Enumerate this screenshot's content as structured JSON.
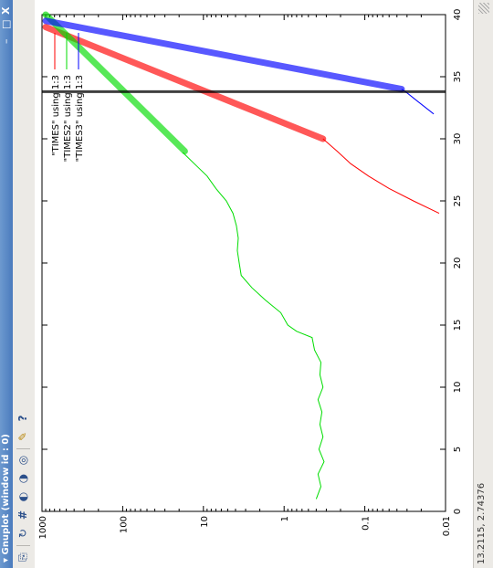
{
  "window": {
    "title": "Gnuplot (window id : 0)",
    "menu_glyph": "▾",
    "minimize_glyph": "–",
    "maximize_glyph": "□",
    "close_glyph": "X"
  },
  "toolbar": {
    "icons": [
      {
        "name": "copy-to-clipboard-icon",
        "glyph": "⎘"
      },
      {
        "name": "replot-icon",
        "glyph": "↻"
      },
      {
        "name": "grid-icon",
        "glyph": "#"
      },
      {
        "name": "previous-zoom-icon",
        "glyph": "◐"
      },
      {
        "name": "next-zoom-icon",
        "glyph": "◑"
      },
      {
        "name": "autoscale-icon",
        "glyph": "◎"
      },
      {
        "name": "configure-icon",
        "glyph": "✎"
      },
      {
        "name": "help-icon",
        "glyph": "?"
      }
    ]
  },
  "status": {
    "coords": "13.2115, 2.74376"
  },
  "chart_data": {
    "type": "line",
    "x_ticks": [
      "0",
      "5",
      "10",
      "15",
      "20",
      "25",
      "30",
      "35",
      "40"
    ],
    "y_ticks": [
      "0.01",
      "0.1",
      "1",
      "10",
      "100",
      "1000"
    ],
    "xlim": [
      0,
      40
    ],
    "ylim": [
      0.01,
      1000
    ],
    "yscale": "log",
    "grid": false,
    "legend_position": "top-right",
    "series": [
      {
        "name": "\"TIMES\" using 1:3",
        "color": "#ff0000",
        "points": [
          [
            24,
            0.012
          ],
          [
            25,
            0.025
          ],
          [
            26,
            0.05
          ],
          [
            27,
            0.09
          ],
          [
            28,
            0.15
          ],
          [
            29,
            0.22
          ],
          [
            30,
            0.33
          ]
        ]
      },
      {
        "name": "\"TIMES2\" using 1:3",
        "color": "#00dd00",
        "points": [
          [
            1,
            0.4
          ],
          [
            2,
            0.35
          ],
          [
            3,
            0.38
          ],
          [
            4,
            0.32
          ],
          [
            5,
            0.37
          ],
          [
            6,
            0.33
          ],
          [
            7,
            0.36
          ],
          [
            8,
            0.34
          ],
          [
            9,
            0.38
          ],
          [
            10,
            0.33
          ],
          [
            11,
            0.36
          ],
          [
            12,
            0.35
          ],
          [
            13,
            0.42
          ],
          [
            14,
            0.45
          ],
          [
            14.5,
            0.7
          ],
          [
            15,
            0.9
          ],
          [
            16,
            1.1
          ],
          [
            17,
            1.7
          ],
          [
            18,
            2.5
          ],
          [
            19,
            3.4
          ],
          [
            20,
            3.6
          ],
          [
            21,
            3.8
          ],
          [
            22,
            3.7
          ],
          [
            23,
            3.9
          ],
          [
            24,
            4.3
          ],
          [
            25,
            5.2
          ],
          [
            26,
            7.0
          ],
          [
            27,
            9.0
          ],
          [
            28,
            13
          ],
          [
            28.9,
            18
          ]
        ]
      },
      {
        "name": "\"TIMES3\" using 1:3",
        "color": "#0000ff",
        "points": [
          [
            32,
            0.014
          ],
          [
            33,
            0.022
          ],
          [
            33.7,
            0.03
          ],
          [
            34,
            0.035
          ]
        ]
      }
    ],
    "annotations": [
      {
        "type": "fit",
        "color": "#ff0000",
        "from": [
          30,
          0.33
        ],
        "to": [
          39,
          900
        ]
      },
      {
        "type": "fit",
        "color": "#00dd00",
        "from": [
          29,
          17
        ],
        "to": [
          40,
          900
        ]
      },
      {
        "type": "fit",
        "color": "#0000ff",
        "from": [
          34,
          0.035
        ],
        "to": [
          39.5,
          900
        ]
      },
      {
        "type": "vertical",
        "color": "#000000",
        "x": 33.8
      }
    ]
  }
}
